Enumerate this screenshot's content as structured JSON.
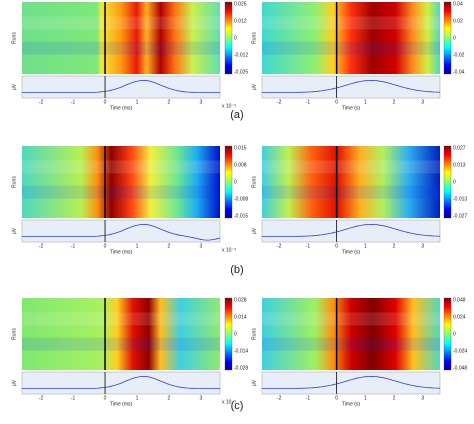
{
  "panels": [
    {
      "label": "(a)",
      "left": {
        "y_label": "Runs",
        "trace_label": "µV",
        "x_label": "Time (ms)",
        "x_scale": "x 10⁻³",
        "x_ticks": [
          "-2",
          "-1",
          "0",
          "1",
          "2",
          "3"
        ],
        "colorbar_ticks": [
          "0.025",
          "0.012",
          "0",
          "-0.012",
          "-0.025"
        ]
      },
      "right": {
        "y_label": "Runs",
        "trace_label": "µV",
        "x_label": "Time (s)",
        "x_ticks": [
          "-2",
          "-1",
          "0",
          "1",
          "2",
          "3"
        ],
        "colorbar_ticks": [
          "0.04",
          "0.02",
          "0",
          "-0.02",
          "-0.04"
        ]
      }
    },
    {
      "label": "(b)",
      "left": {
        "y_label": "Runs",
        "trace_label": "µV",
        "x_label": "Time (ms)",
        "x_scale": "x 10⁻³",
        "x_ticks": [
          "-2",
          "-1",
          "0",
          "1",
          "2",
          "3"
        ],
        "colorbar_ticks": [
          "0.015",
          "0.008",
          "0",
          "-0.008",
          "-0.015"
        ]
      },
      "right": {
        "y_label": "Runs",
        "trace_label": "µV",
        "x_label": "Time (s)",
        "x_ticks": [
          "-2",
          "-1",
          "0",
          "1",
          "2",
          "3"
        ],
        "colorbar_ticks": [
          "0.027",
          "0.013",
          "0",
          "-0.013",
          "-0.027"
        ]
      }
    },
    {
      "label": "(c)",
      "left": {
        "y_label": "Runs",
        "trace_label": "µV",
        "x_label": "Time (ms)",
        "x_scale": "x 10⁻³",
        "x_ticks": [
          "-2",
          "-1",
          "0",
          "1",
          "2",
          "3"
        ],
        "colorbar_ticks": [
          "0.028",
          "0.014",
          "0",
          "-0.014",
          "-0.028"
        ]
      },
      "right": {
        "y_label": "Runs",
        "trace_label": "µV",
        "x_label": "Time (s)",
        "x_ticks": [
          "-2",
          "-1",
          "0",
          "1",
          "2",
          "3"
        ],
        "colorbar_ticks": [
          "0.048",
          "0.024",
          "0",
          "-0.024",
          "-0.048"
        ]
      }
    }
  ]
}
